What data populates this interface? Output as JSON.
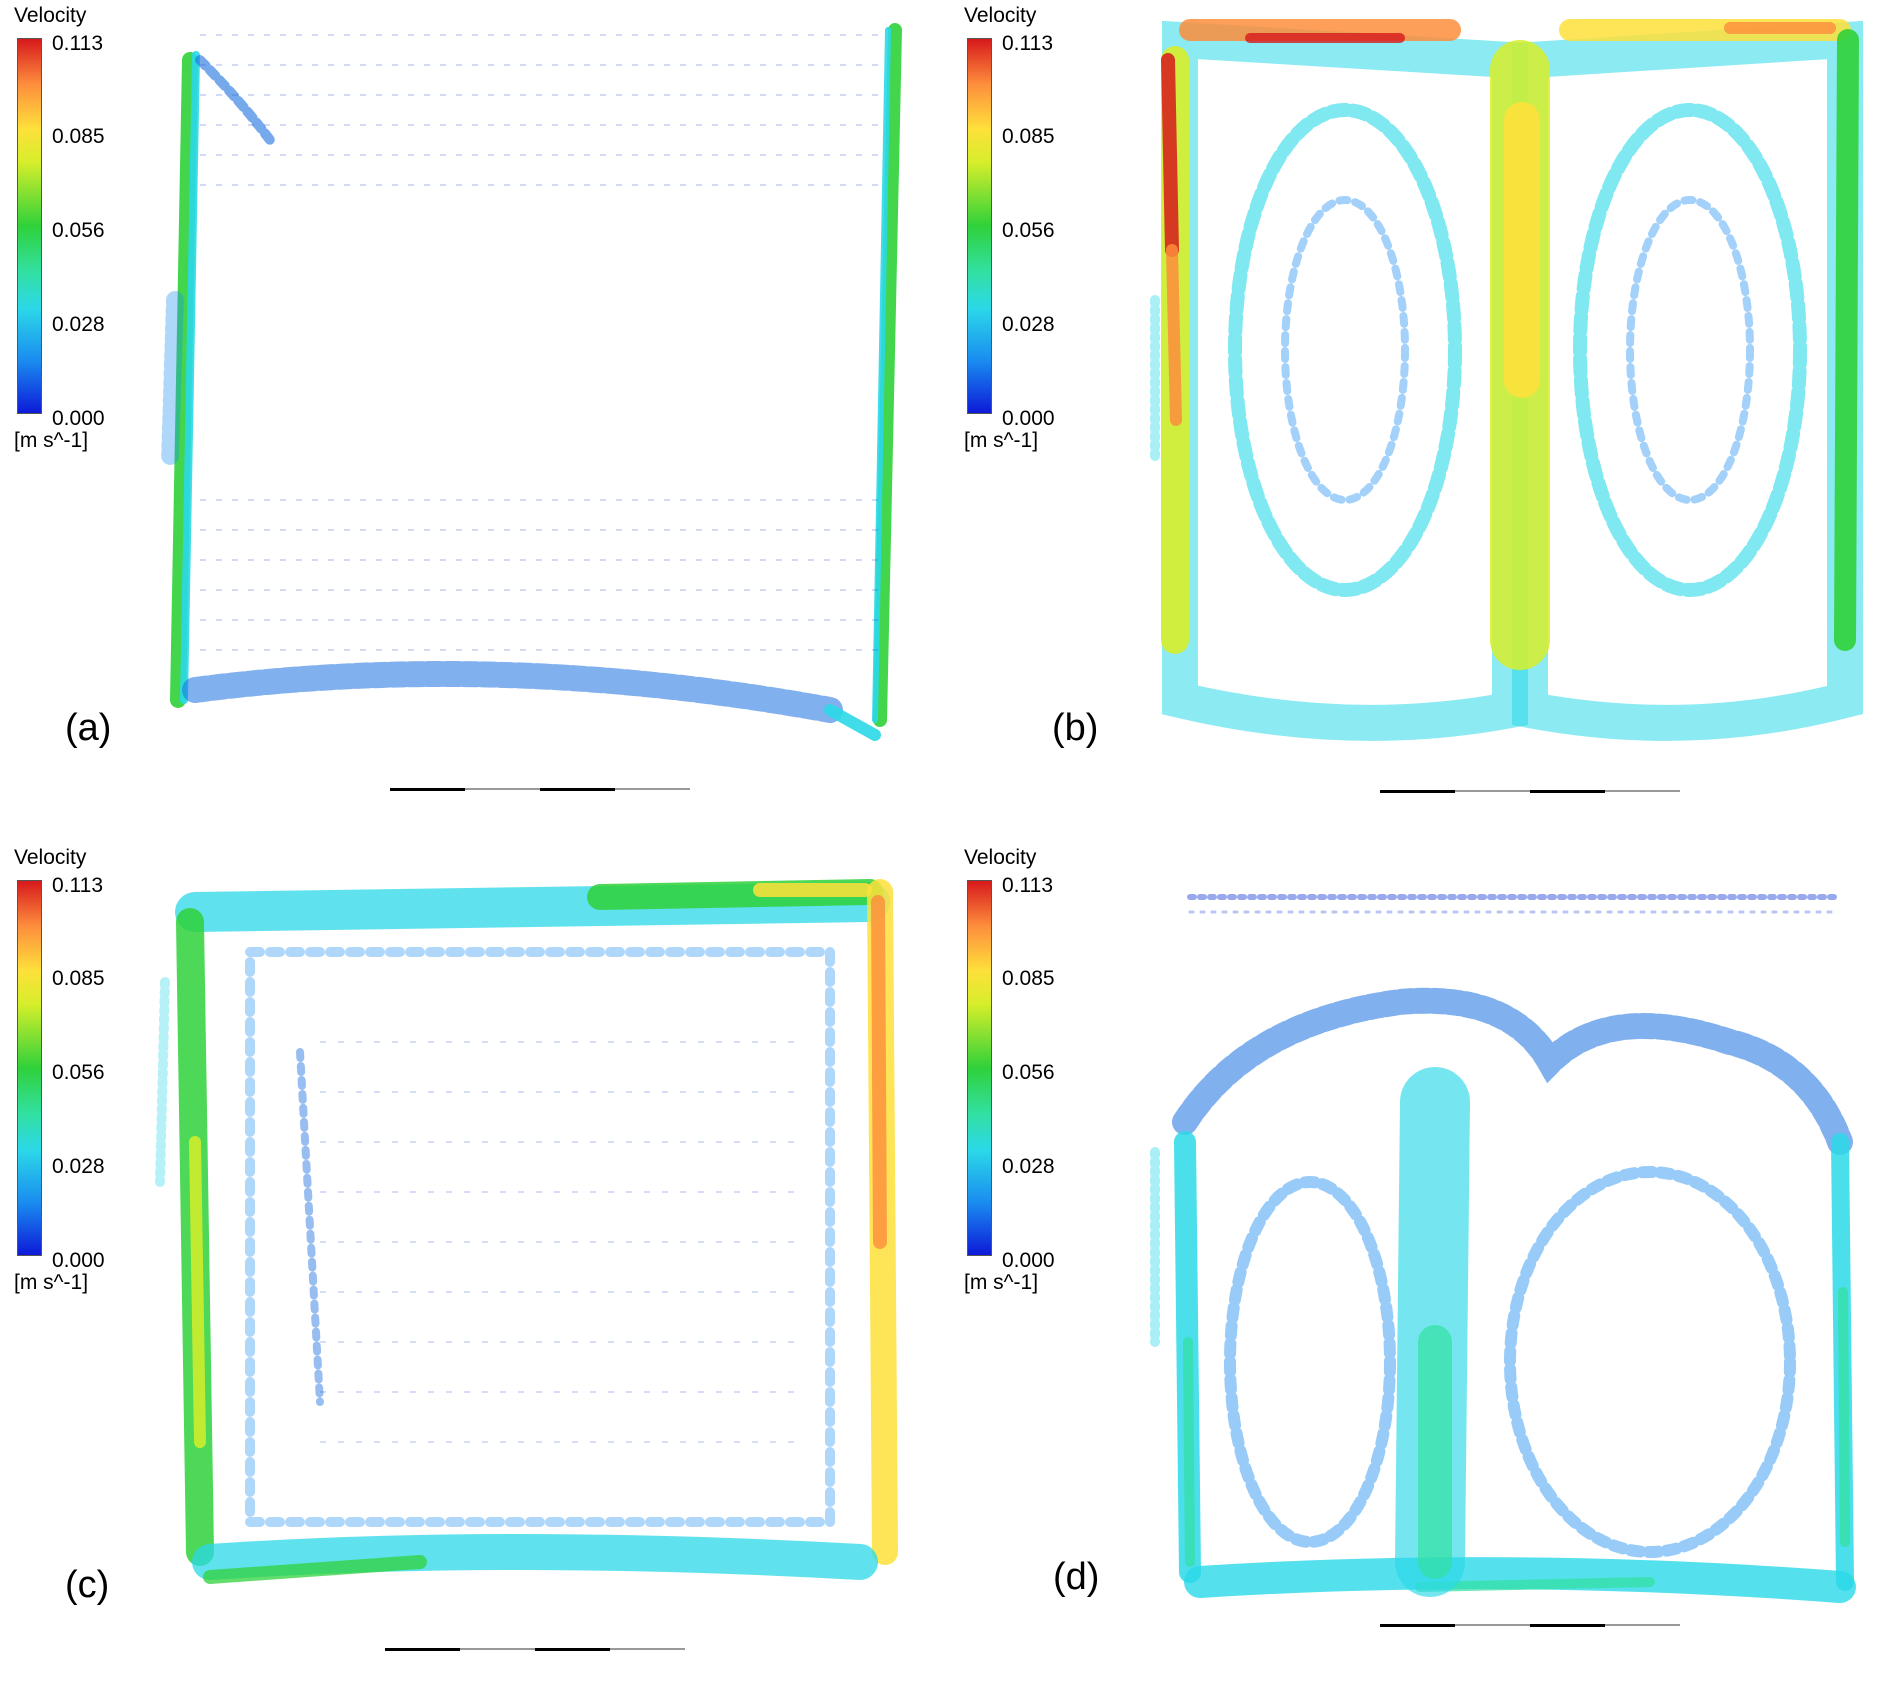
{
  "legend": {
    "title": "Velocity",
    "unit": "[m s^-1]",
    "ticks": [
      "0.113",
      "0.085",
      "0.056",
      "0.028",
      "0.000"
    ],
    "colors": [
      "#d7191c",
      "#fd8d3c",
      "#fee03b",
      "#2fd13a",
      "#2bd8e8",
      "#1a8cf0",
      "#0d1ad8"
    ]
  },
  "panels": [
    {
      "id": "a",
      "label": "(a)"
    },
    {
      "id": "b",
      "label": "(b)"
    },
    {
      "id": "c",
      "label": "(c)"
    },
    {
      "id": "d",
      "label": "(d)"
    }
  ]
}
